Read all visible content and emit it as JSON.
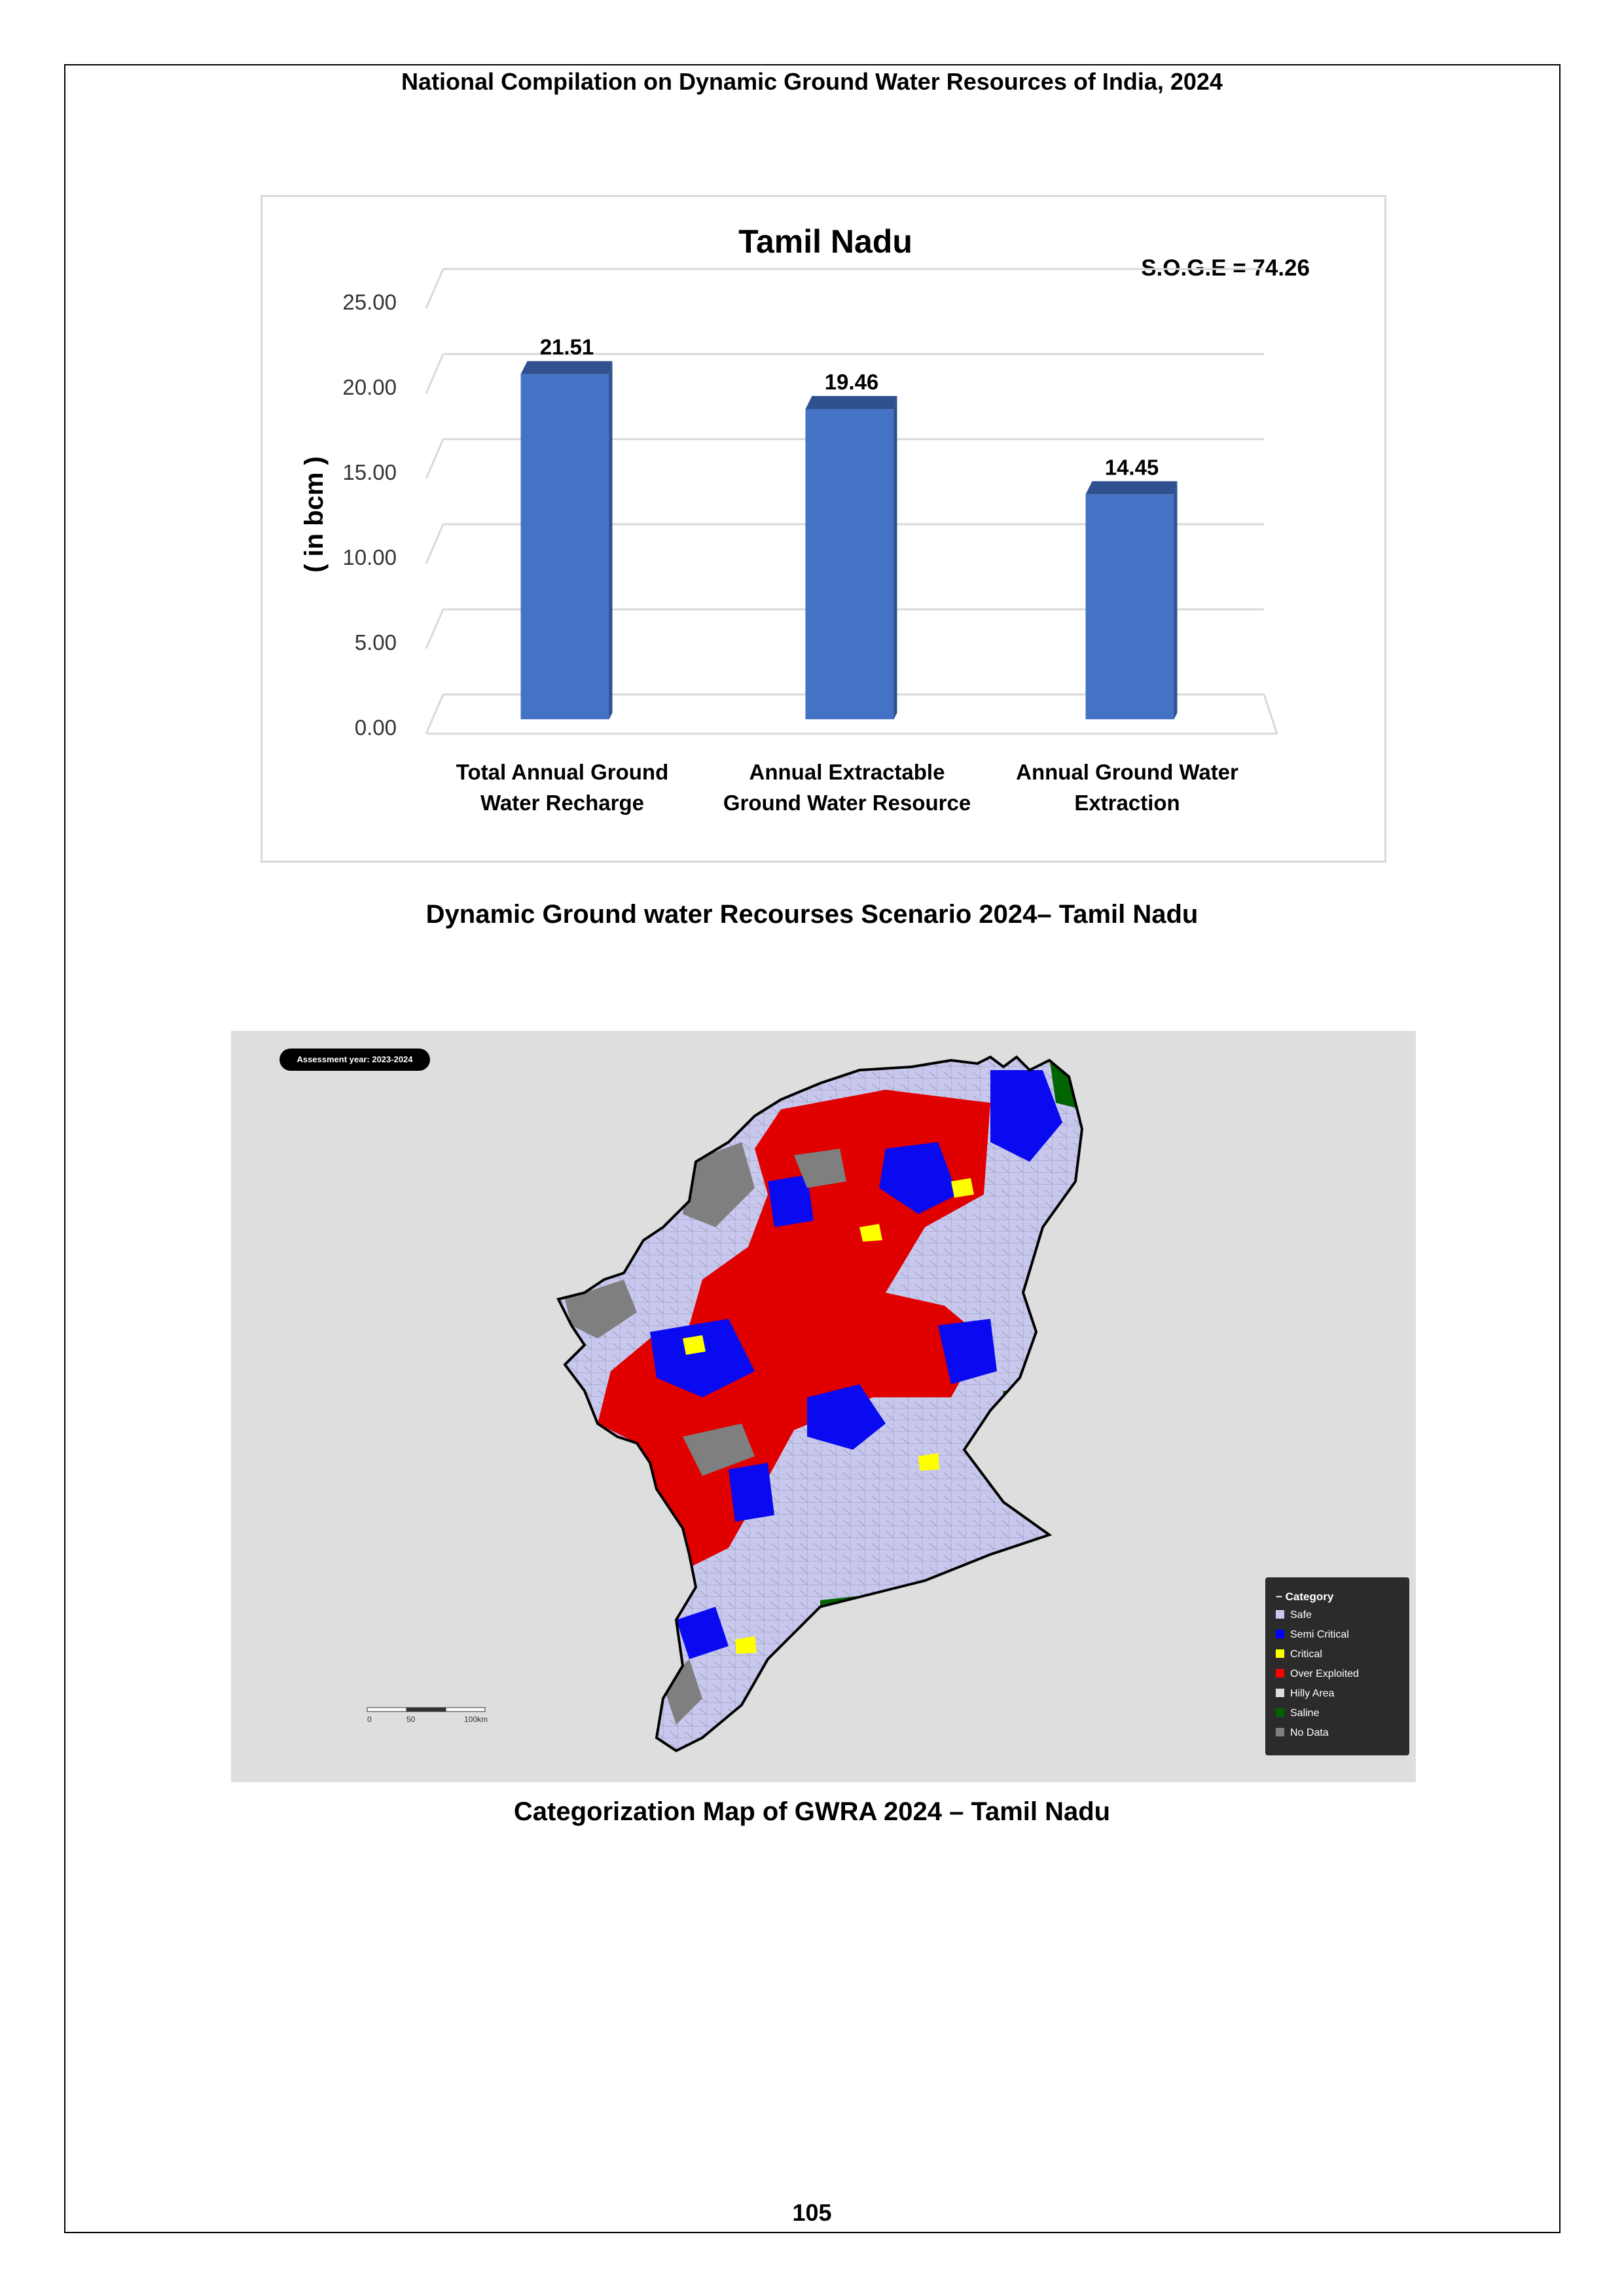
{
  "header": {
    "title": "National Compilation on Dynamic Ground Water Resources of India, 2024"
  },
  "chart_data": {
    "type": "bar",
    "title": "Tamil Nadu",
    "annotation": "S.O.G.E =  74.26",
    "ylabel": "( in bcm )",
    "ylim": [
      0,
      25
    ],
    "yticks": [
      "0.00",
      "5.00",
      "10.00",
      "15.00",
      "20.00",
      "25.00"
    ],
    "ytick_values": [
      0,
      5,
      10,
      15,
      20,
      25
    ],
    "grid": true,
    "categories": [
      [
        "Total Annual  Ground",
        "Water Recharge"
      ],
      [
        "Annual Extractable",
        "Ground Water Resource"
      ],
      [
        "Annual Ground Water",
        "Extraction"
      ]
    ],
    "values": [
      21.51,
      19.46,
      14.45
    ],
    "value_labels": [
      "21.51",
      "19.46",
      "14.45"
    ],
    "bar_color": "#4472c4",
    "bar_top_color": "#2f528f"
  },
  "captions": {
    "chart": "Dynamic Ground water Recourses Scenario 2024– Tamil Nadu",
    "map": "Categorization Map of GWRA 2024 – Tamil Nadu"
  },
  "map": {
    "badge": "Assessment year: 2023-2024",
    "legend_title": "Category",
    "legend": [
      {
        "label": "Safe",
        "color": "#c8c8ee"
      },
      {
        "label": "Semi Critical",
        "color": "#0000ff"
      },
      {
        "label": "Critical",
        "color": "#ffff00"
      },
      {
        "label": "Over Exploited",
        "color": "#ff0000"
      },
      {
        "label": "Hilly Area",
        "color": "#dcdcdc"
      },
      {
        "label": "Saline",
        "color": "#006400"
      },
      {
        "label": "No Data",
        "color": "#7f7f7f"
      }
    ],
    "scale_labels": [
      "0",
      "50",
      "100km"
    ]
  },
  "footer": {
    "page_number": "105"
  }
}
